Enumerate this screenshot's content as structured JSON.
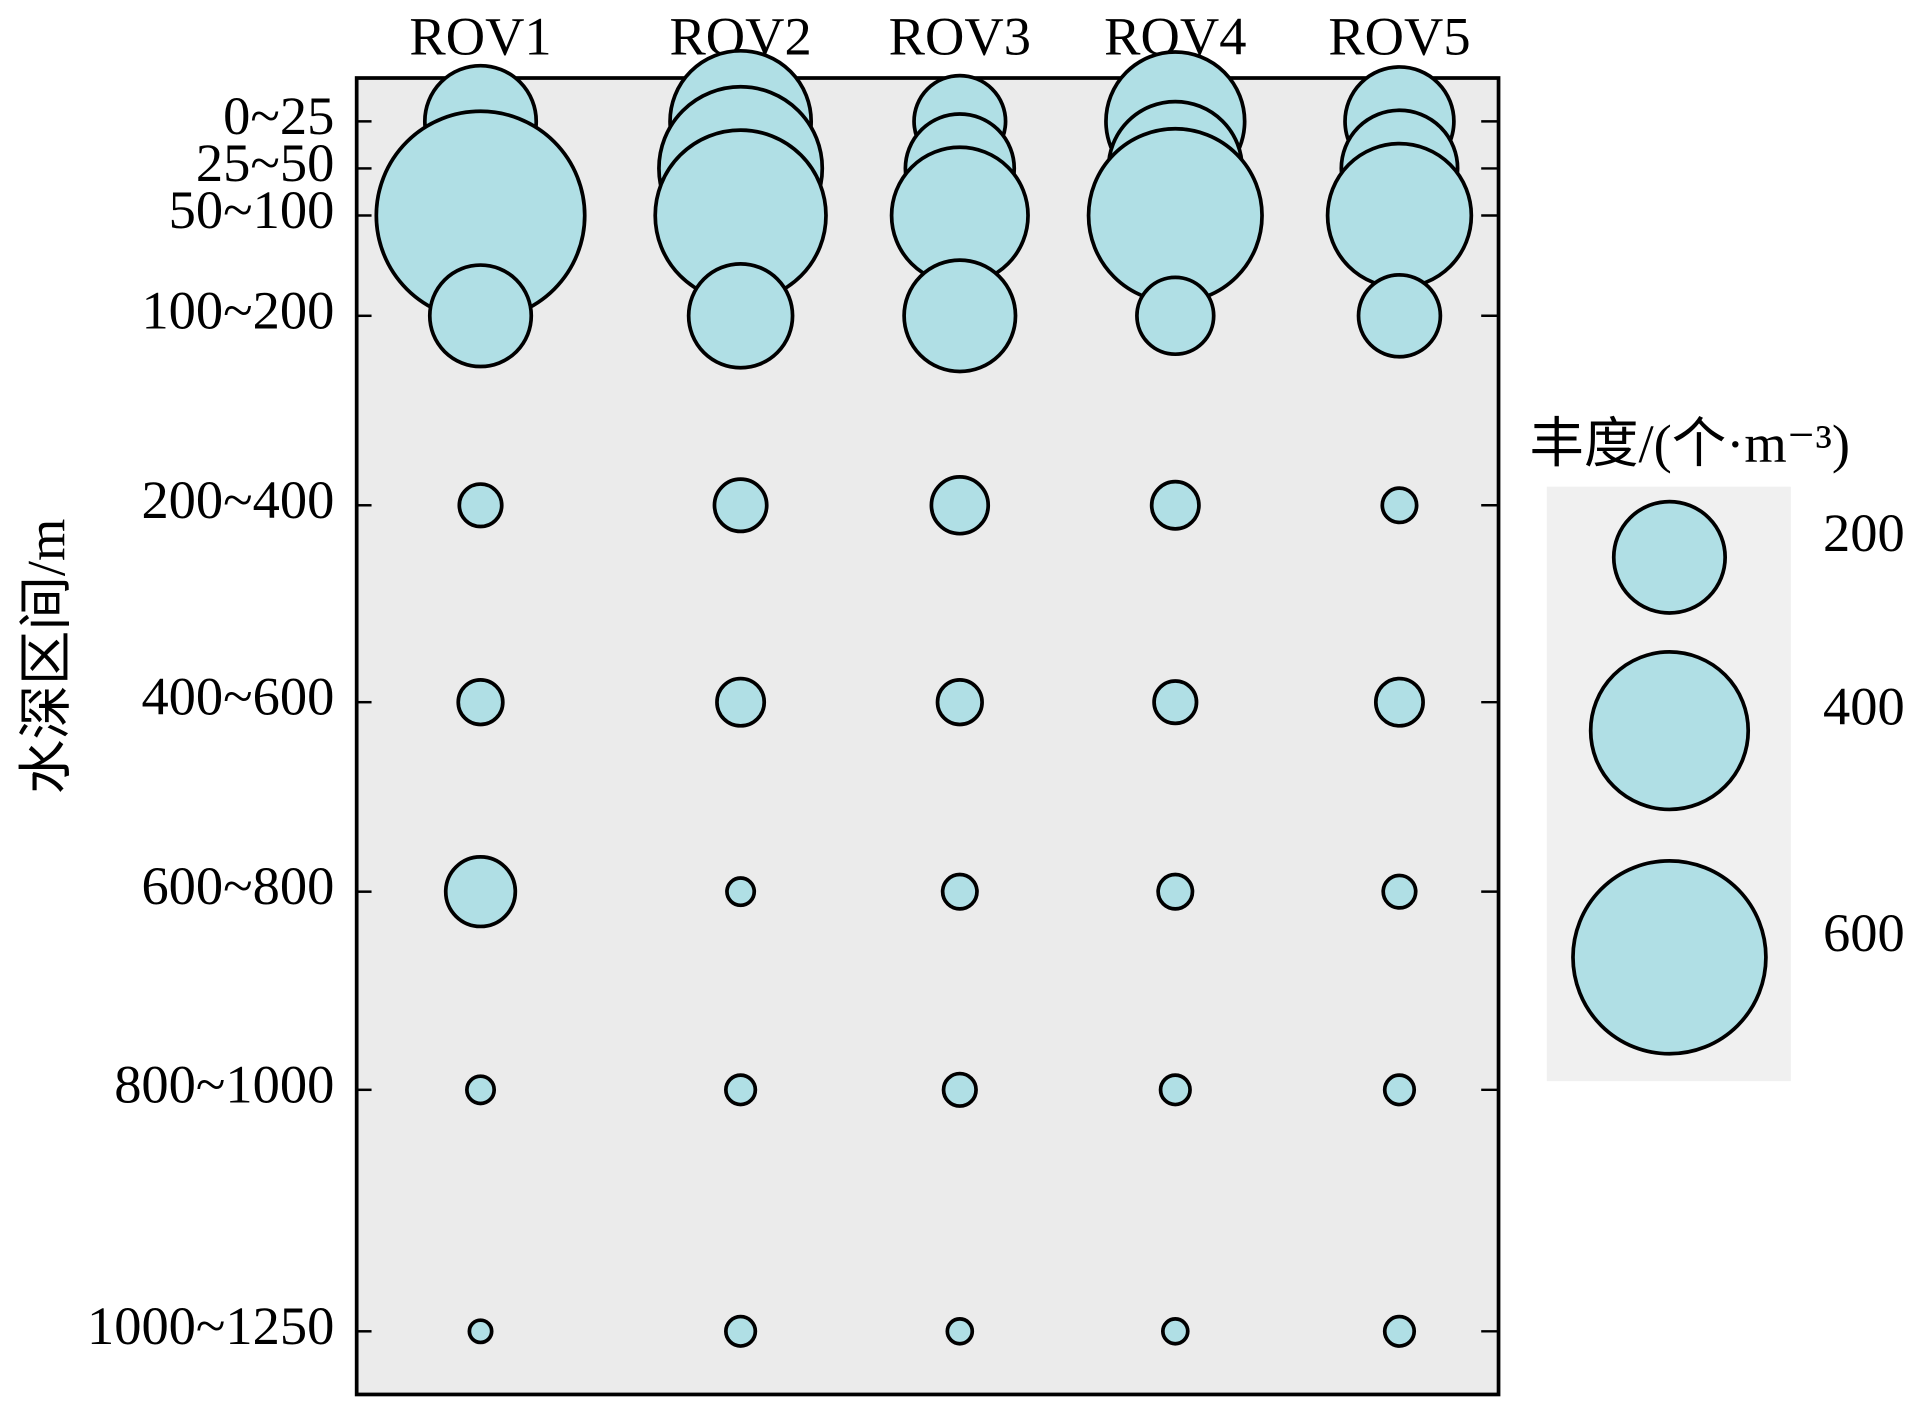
{
  "chart_data": {
    "type": "bubble",
    "y_axis_label": "水深区间/m",
    "categories": [
      "0~25",
      "25~50",
      "50~100",
      "100~200",
      "200~400",
      "400~600",
      "600~800",
      "800~1000",
      "1000~1250"
    ],
    "color": "#b0dfe5",
    "series": [
      {
        "name": "ROV1",
        "values": [
          200,
          100,
          700,
          166,
          29,
          32,
          78,
          12,
          8
        ]
      },
      {
        "name": "ROV2",
        "values": [
          321,
          430,
          470,
          174,
          44,
          36,
          12,
          14,
          14
        ]
      },
      {
        "name": "ROV3",
        "values": [
          135,
          191,
          300,
          200,
          52,
          32,
          19,
          17,
          10
        ]
      },
      {
        "name": "ROV4",
        "values": [
          310,
          288,
          485,
          95,
          36,
          29,
          19,
          14,
          10
        ]
      },
      {
        "name": "ROV5",
        "values": [
          191,
          218,
          333,
          108,
          19,
          36,
          17,
          14,
          14
        ]
      }
    ],
    "size_legend": {
      "title": "丰度/(个·m⁻³)",
      "values": [
        200,
        400,
        600
      ]
    }
  }
}
